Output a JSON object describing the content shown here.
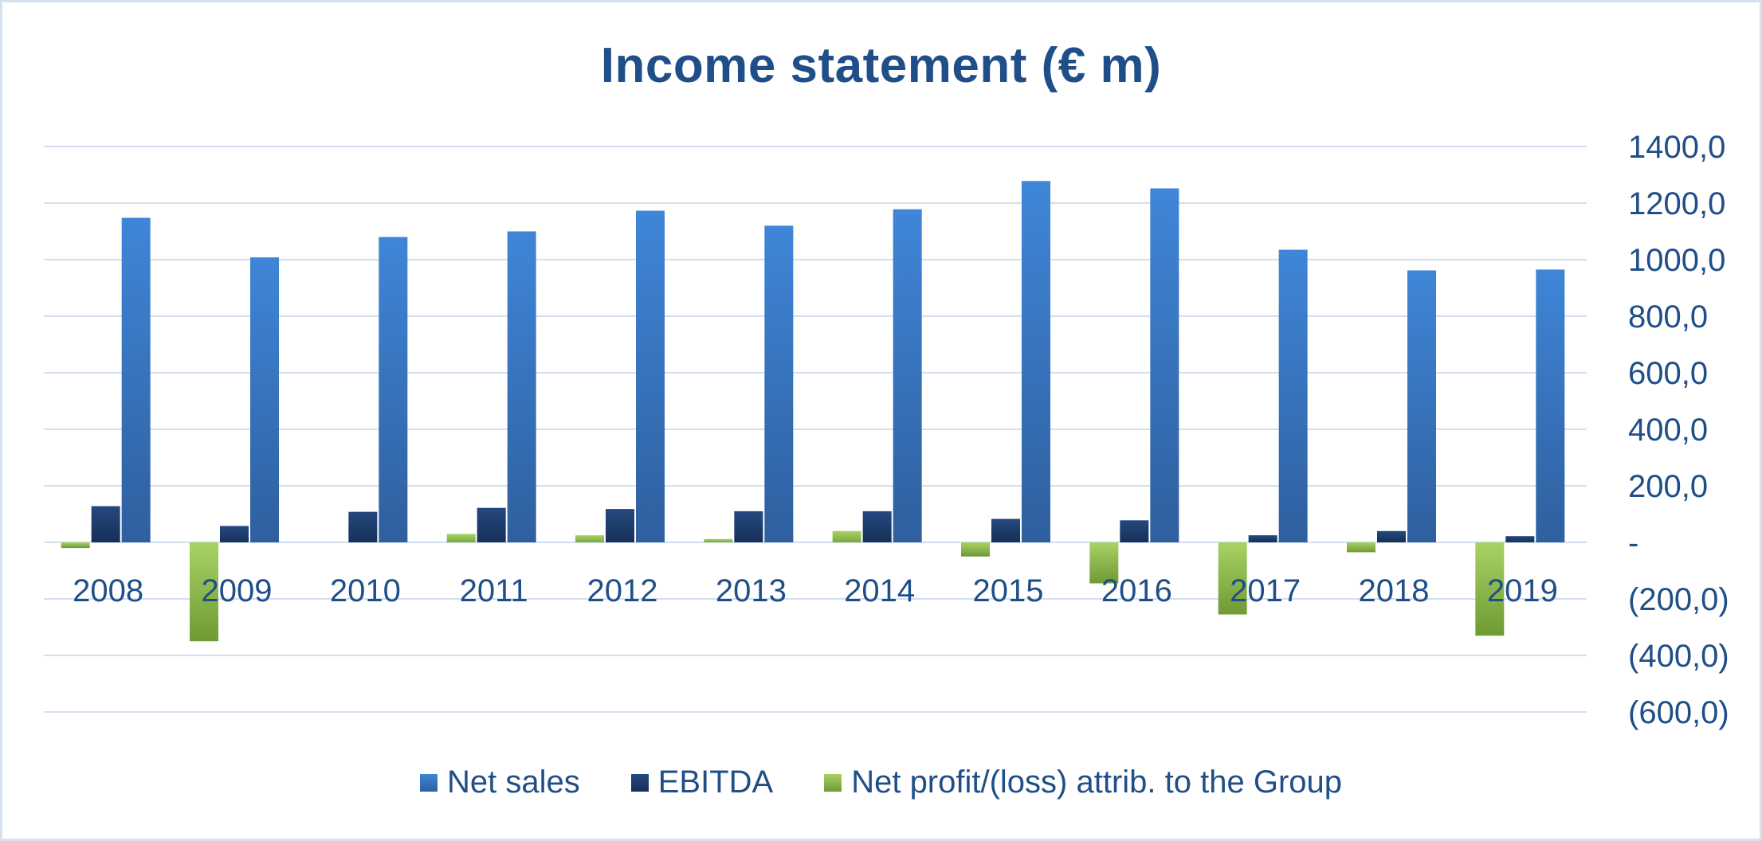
{
  "chart_data": {
    "type": "bar",
    "title": "Income statement (€ m)",
    "categories": [
      "2008",
      "2009",
      "2010",
      "2011",
      "2012",
      "2013",
      "2014",
      "2015",
      "2016",
      "2017",
      "2018",
      "2019"
    ],
    "series": [
      {
        "name": "Net profit/(loss) attrib. to the Group",
        "color": "#8fc046",
        "values": [
          -20,
          -350,
          0,
          30,
          25,
          12,
          40,
          -50,
          -145,
          -255,
          -35,
          -330
        ]
      },
      {
        "name": "EBITDA",
        "color": "#1e3f72",
        "values": [
          128,
          58,
          108,
          122,
          118,
          110,
          110,
          83,
          78,
          25,
          40,
          22
        ]
      },
      {
        "name": "Net sales",
        "color": "#3d7fcf",
        "values": [
          1148,
          1008,
          1080,
          1100,
          1173,
          1120,
          1178,
          1278,
          1252,
          1035,
          962,
          965
        ]
      }
    ],
    "ylim": [
      -600,
      1400
    ],
    "yticks": [
      1400,
      1200,
      1000,
      800,
      600,
      400,
      200,
      0,
      -200,
      -400,
      -600
    ],
    "ytick_labels": [
      "1400,0",
      "1200,0",
      "1000,0",
      "800,0",
      "600,0",
      "400,0",
      "200,0",
      "-",
      "(200,0)",
      "(400,0)",
      "(600,0)"
    ],
    "yaxis_position": "right",
    "grid": true,
    "legend_position": "bottom",
    "legend": [
      "Net sales",
      "EBITDA",
      "Net profit/(loss) attrib. to the Group"
    ],
    "legend_colors": [
      "#3d7fcf",
      "#1e3f72",
      "#8fc046"
    ]
  }
}
